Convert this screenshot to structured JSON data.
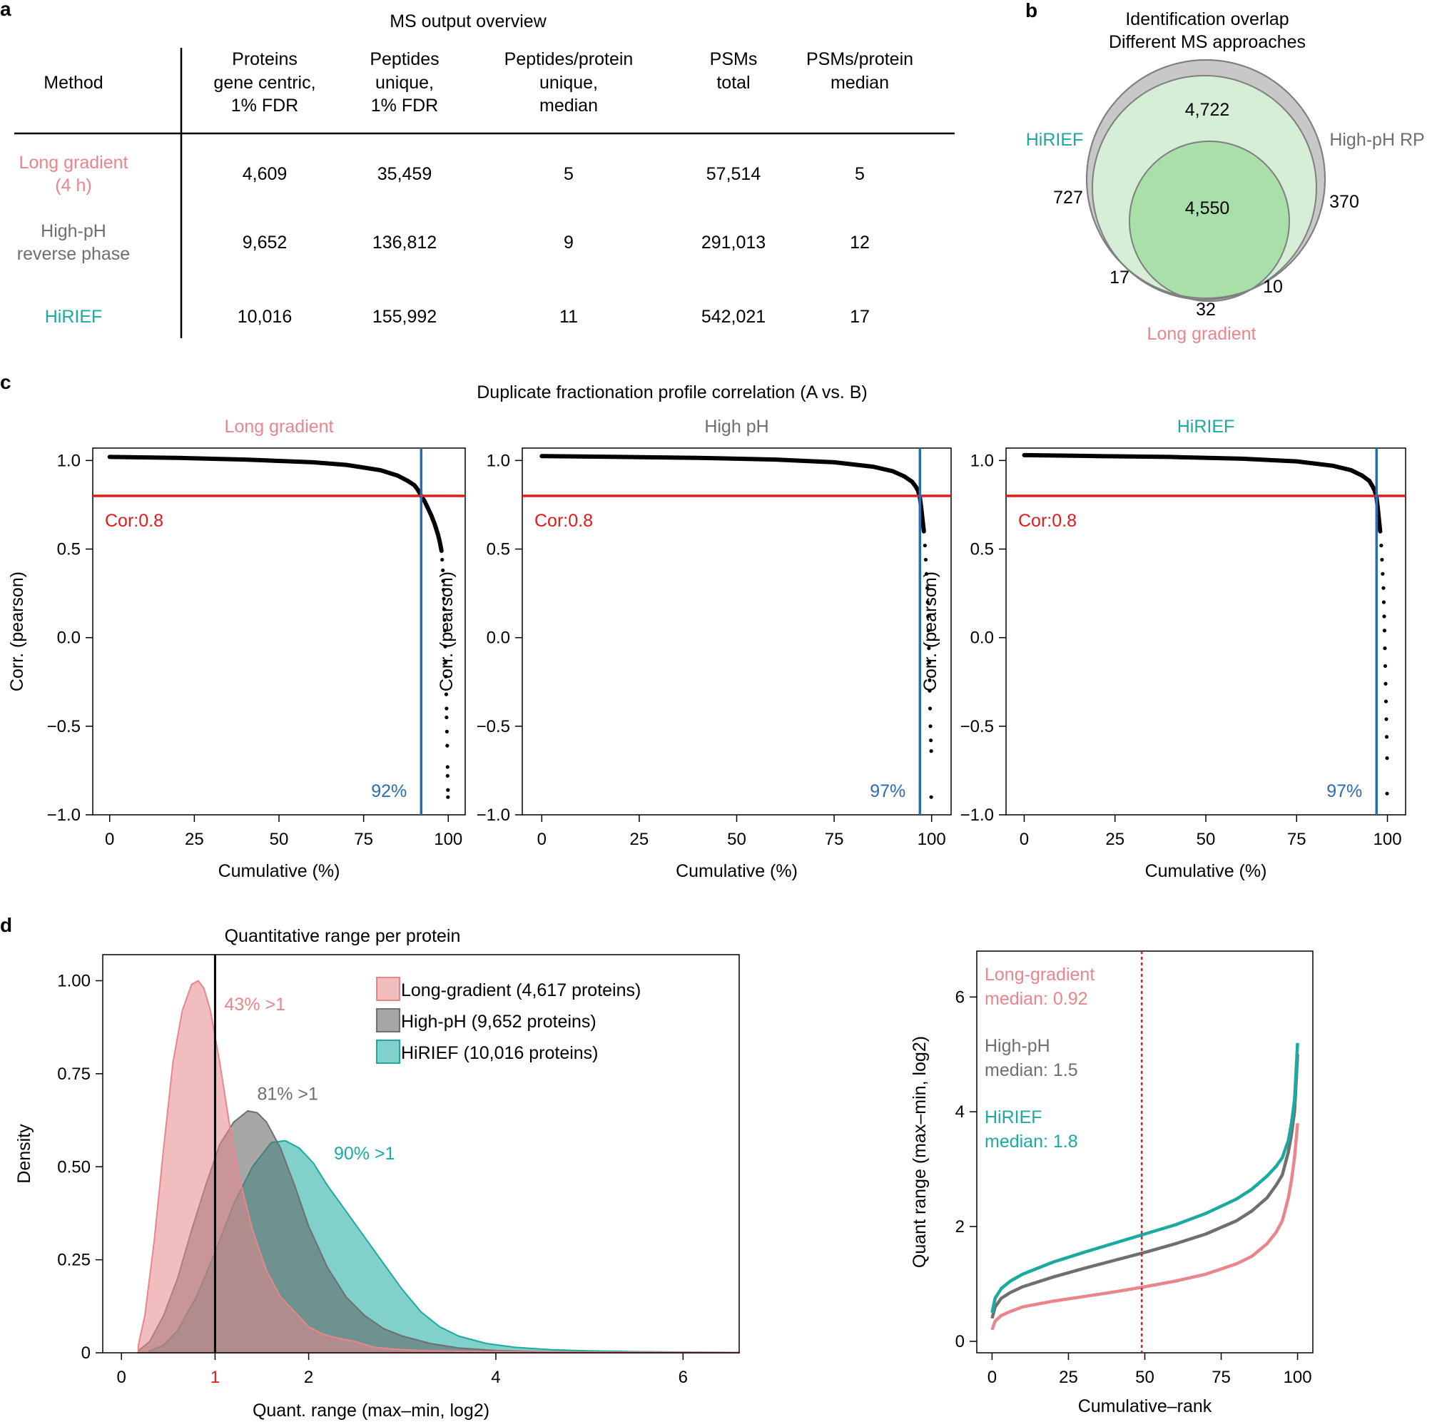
{
  "colors": {
    "long_gradient": "#e8868b",
    "high_ph": "#6f6f6f",
    "hirief": "#1aaaa0",
    "cutoff_red": "#e3191c",
    "cutoff_blue": "#2b6cb3"
  },
  "panel_letters": {
    "a": "a",
    "b": "b",
    "c": "c",
    "d": "d"
  },
  "table": {
    "title": "MS output overview",
    "headers": [
      [
        "Method"
      ],
      [
        "Proteins",
        "gene centric,",
        "1% FDR"
      ],
      [
        "Peptides",
        "unique,",
        "1% FDR"
      ],
      [
        "Peptides/protein",
        "unique,",
        "median"
      ],
      [
        "PSMs",
        "total"
      ],
      [
        "PSMs/protein",
        "median"
      ]
    ],
    "rows": [
      {
        "method": [
          "Long gradient",
          "(4 h)"
        ],
        "values": [
          "4,609",
          "35,459",
          "5",
          "57,514",
          "5"
        ]
      },
      {
        "method": [
          "High-pH",
          "reverse phase"
        ],
        "values": [
          "9,652",
          "136,812",
          "9",
          "291,013",
          "12"
        ]
      },
      {
        "method": [
          "HiRIEF"
        ],
        "values": [
          "10,016",
          "155,992",
          "11",
          "542,021",
          "17"
        ]
      }
    ]
  },
  "venn": {
    "title": [
      "Identification overlap",
      "Different MS approaches"
    ],
    "labels": {
      "hirief": "HiRIEF",
      "high_ph": "High-pH RP",
      "long_gradient": "Long gradient"
    },
    "counts": {
      "hirief_high_ph": "4,722",
      "all_three": "4,550",
      "hirief_only": "727",
      "high_ph_only": "370",
      "hirief_long": "17",
      "long_only": "32",
      "high_ph_long": "10"
    }
  },
  "chart_data": [
    {
      "type": "scatter",
      "panel": "c",
      "suptitle": "Duplicate fractionation profile correlation (A vs. B)",
      "xlabel": "Cumulative (%)",
      "ylabel": "Corr. (pearson)",
      "xlim": [
        -5,
        105
      ],
      "ylim": [
        -1.0,
        1.07
      ],
      "xticks": [
        0,
        25,
        50,
        75,
        100
      ],
      "yticks": [
        -1.0,
        -0.5,
        0.0,
        0.5,
        1.0
      ],
      "ytick_labels": [
        "−1.0",
        "−0.5",
        "0.0",
        "0.5",
        "1.0"
      ],
      "hline": {
        "value": 0.8,
        "label": "Cor:0.8"
      },
      "panels": [
        {
          "title": "Long gradient",
          "vline": 92,
          "vline_label": "92%",
          "curve_x": [
            0,
            20,
            40,
            60,
            70,
            80,
            85,
            88,
            90,
            91,
            92,
            93,
            94,
            95,
            96,
            97,
            97.5,
            98
          ],
          "curve_y": [
            1.02,
            1.015,
            1.005,
            0.99,
            0.975,
            0.945,
            0.915,
            0.885,
            0.86,
            0.835,
            0.8,
            0.77,
            0.73,
            0.69,
            0.64,
            0.58,
            0.54,
            0.49
          ],
          "tail_x": [
            98.2,
            98.4,
            98.5,
            98.6,
            98.7,
            98.8,
            98.9,
            99.0,
            99.1,
            99.2,
            99.3,
            99.4,
            99.5,
            99.5,
            99.6,
            99.7,
            99.8,
            99.8,
            99.9,
            99.9
          ],
          "tail_y": [
            0.44,
            0.38,
            0.32,
            0.27,
            0.22,
            0.16,
            0.1,
            0.04,
            -0.05,
            -0.14,
            -0.22,
            -0.32,
            -0.4,
            -0.45,
            -0.53,
            -0.61,
            -0.73,
            -0.78,
            -0.86,
            -0.9
          ]
        },
        {
          "title": "High pH",
          "vline": 97,
          "vline_label": "97%",
          "curve_x": [
            0,
            20,
            40,
            60,
            75,
            85,
            90,
            93,
            95,
            96,
            96.5,
            97,
            97.3,
            97.6,
            98
          ],
          "curve_y": [
            1.025,
            1.02,
            1.015,
            1.005,
            0.99,
            0.965,
            0.94,
            0.91,
            0.88,
            0.85,
            0.83,
            0.79,
            0.74,
            0.68,
            0.6
          ],
          "tail_x": [
            98.3,
            98.5,
            98.7,
            98.9,
            99.0,
            99.1,
            99.2,
            99.3,
            99.4,
            99.5,
            99.5,
            99.6,
            99.7,
            99.8,
            99.9,
            99.9
          ],
          "tail_y": [
            0.52,
            0.44,
            0.36,
            0.28,
            0.2,
            0.12,
            0.04,
            -0.06,
            -0.14,
            -0.24,
            -0.3,
            -0.4,
            -0.5,
            -0.58,
            -0.64,
            -0.9
          ]
        },
        {
          "title": "HiRIEF",
          "vline": 97,
          "vline_label": "97%",
          "curve_x": [
            0,
            20,
            40,
            60,
            75,
            85,
            90,
            93,
            95,
            96,
            96.5,
            97,
            97.3,
            97.6,
            98
          ],
          "curve_y": [
            1.03,
            1.025,
            1.02,
            1.01,
            0.995,
            0.97,
            0.945,
            0.915,
            0.885,
            0.85,
            0.83,
            0.79,
            0.74,
            0.68,
            0.6
          ],
          "tail_x": [
            98.3,
            98.5,
            98.7,
            98.9,
            99.0,
            99.1,
            99.2,
            99.3,
            99.4,
            99.5,
            99.6,
            99.7,
            99.8,
            99.9,
            99.9
          ],
          "tail_y": [
            0.52,
            0.44,
            0.36,
            0.28,
            0.2,
            0.12,
            0.04,
            -0.06,
            -0.16,
            -0.26,
            -0.36,
            -0.46,
            -0.56,
            -0.68,
            -0.88
          ]
        }
      ]
    },
    {
      "type": "area",
      "panel": "d-left",
      "title": "Quantitative range per protein",
      "xlabel": "Quant. range (max–min, log2)",
      "ylabel": "Density",
      "xlim": [
        -0.2,
        6.6
      ],
      "ylim": [
        0,
        1.07
      ],
      "xticks": [
        0,
        1,
        2,
        4,
        6
      ],
      "yticks": [
        0,
        0.25,
        0.5,
        0.75,
        1.0
      ],
      "ytick_labels": [
        "0",
        "0.25",
        "0.50",
        "0.75",
        "1.00"
      ],
      "vline": 1,
      "series": [
        {
          "name": "Long-gradient (4,617 proteins)",
          "annotation": "43% >1",
          "annotation_at": [
            1.1,
            0.92
          ],
          "x": [
            0.18,
            0.25,
            0.35,
            0.45,
            0.55,
            0.65,
            0.75,
            0.82,
            0.88,
            0.95,
            1.05,
            1.15,
            1.25,
            1.4,
            1.55,
            1.7,
            1.85,
            2.0,
            2.15,
            2.3,
            2.5,
            2.7,
            2.9,
            3.2,
            3.6,
            4.2,
            5.0,
            6.6
          ],
          "y": [
            0.02,
            0.1,
            0.3,
            0.55,
            0.78,
            0.92,
            0.99,
            1.0,
            0.98,
            0.92,
            0.78,
            0.62,
            0.48,
            0.33,
            0.22,
            0.15,
            0.11,
            0.07,
            0.05,
            0.04,
            0.03,
            0.015,
            0.01,
            0.006,
            0.004,
            0.003,
            0.002,
            0.001
          ]
        },
        {
          "name": "High-pH (9,652 proteins)",
          "annotation": "81% >1",
          "annotation_at": [
            1.45,
            0.68
          ],
          "x": [
            0.18,
            0.3,
            0.45,
            0.6,
            0.75,
            0.9,
            1.05,
            1.2,
            1.35,
            1.45,
            1.55,
            1.7,
            1.85,
            2.0,
            2.2,
            2.4,
            2.6,
            2.8,
            3.0,
            3.3,
            3.6,
            4.0,
            4.5,
            5.0,
            5.5,
            6.6
          ],
          "y": [
            0.005,
            0.03,
            0.1,
            0.2,
            0.33,
            0.45,
            0.56,
            0.62,
            0.65,
            0.645,
            0.62,
            0.55,
            0.45,
            0.34,
            0.23,
            0.15,
            0.1,
            0.065,
            0.045,
            0.025,
            0.013,
            0.006,
            0.003,
            0.002,
            0.001,
            0.001
          ]
        },
        {
          "name": "HiRIEF (10,016 proteins)",
          "annotation": "90% >1",
          "annotation_at": [
            2.27,
            0.52
          ],
          "x": [
            0.3,
            0.45,
            0.6,
            0.8,
            1.0,
            1.2,
            1.4,
            1.6,
            1.75,
            1.9,
            2.05,
            2.2,
            2.4,
            2.6,
            2.8,
            3.0,
            3.2,
            3.4,
            3.6,
            3.9,
            4.2,
            4.6,
            5.0,
            5.5,
            6.0,
            6.6
          ],
          "y": [
            0.005,
            0.02,
            0.06,
            0.15,
            0.27,
            0.4,
            0.5,
            0.565,
            0.57,
            0.55,
            0.51,
            0.45,
            0.38,
            0.31,
            0.24,
            0.17,
            0.11,
            0.07,
            0.045,
            0.025,
            0.015,
            0.008,
            0.005,
            0.003,
            0.002,
            0.001
          ]
        }
      ],
      "legend": "top-right"
    },
    {
      "type": "line",
      "panel": "d-right",
      "xlabel": "Cumulative–rank",
      "ylabel": "Quant range (max–min, log2)",
      "xlim": [
        -5,
        105
      ],
      "ylim": [
        -0.2,
        6.8
      ],
      "xticks": [
        0,
        25,
        50,
        75,
        100
      ],
      "yticks": [
        0,
        2,
        4,
        6
      ],
      "vline": 49,
      "series": [
        {
          "name": "Long-gradient",
          "median_label": "median: 0.92",
          "x": [
            0,
            1,
            3,
            6,
            10,
            20,
            30,
            40,
            50,
            60,
            70,
            80,
            85,
            90,
            93,
            95,
            97,
            98,
            99,
            99.5,
            100
          ],
          "y": [
            0.2,
            0.35,
            0.45,
            0.52,
            0.6,
            0.7,
            0.78,
            0.86,
            0.95,
            1.05,
            1.17,
            1.35,
            1.48,
            1.7,
            1.9,
            2.1,
            2.5,
            2.8,
            3.2,
            3.5,
            3.8
          ]
        },
        {
          "name": "High-pH",
          "median_label": "median: 1.5",
          "x": [
            0,
            1,
            3,
            6,
            10,
            20,
            30,
            40,
            50,
            60,
            70,
            80,
            85,
            90,
            93,
            95,
            97,
            98,
            99,
            99.5,
            100
          ],
          "y": [
            0.4,
            0.6,
            0.75,
            0.85,
            0.95,
            1.12,
            1.27,
            1.41,
            1.55,
            1.7,
            1.87,
            2.1,
            2.27,
            2.5,
            2.72,
            2.9,
            3.3,
            3.6,
            4.0,
            4.5,
            5.0
          ]
        },
        {
          "name": "HiRIEF",
          "median_label": "median: 1.8",
          "x": [
            0,
            1,
            3,
            6,
            10,
            20,
            30,
            40,
            50,
            60,
            70,
            80,
            85,
            90,
            93,
            95,
            97,
            98,
            99,
            99.5,
            100
          ],
          "y": [
            0.5,
            0.75,
            0.92,
            1.05,
            1.17,
            1.38,
            1.55,
            1.71,
            1.87,
            2.03,
            2.23,
            2.48,
            2.65,
            2.88,
            3.05,
            3.2,
            3.5,
            3.8,
            4.2,
            4.7,
            5.2
          ]
        }
      ]
    }
  ]
}
